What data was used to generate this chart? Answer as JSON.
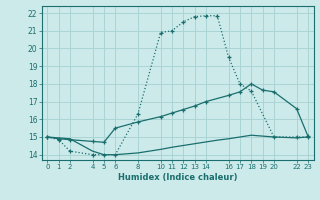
{
  "xlabel": "Humidex (Indice chaleur)",
  "bg_color": "#cceaea",
  "grid_color": "#aad4d4",
  "line_color": "#1a6e6e",
  "line1_x": [
    0,
    1,
    2,
    4,
    5,
    6,
    8,
    10,
    11,
    12,
    13,
    14,
    15,
    16,
    17,
    18,
    20,
    22,
    23
  ],
  "line1_y": [
    15.0,
    14.85,
    14.2,
    14.0,
    14.0,
    14.0,
    16.3,
    20.9,
    21.0,
    21.5,
    21.8,
    21.85,
    21.85,
    19.5,
    18.0,
    17.6,
    15.0,
    15.0,
    15.0
  ],
  "line2_x": [
    0,
    1,
    2,
    4,
    5,
    6,
    8,
    10,
    11,
    12,
    13,
    14,
    16,
    17,
    18,
    19,
    20,
    22,
    23
  ],
  "line2_y": [
    15.0,
    14.9,
    14.85,
    14.75,
    14.7,
    15.5,
    15.85,
    16.15,
    16.35,
    16.55,
    16.75,
    17.0,
    17.35,
    17.55,
    18.0,
    17.65,
    17.55,
    16.6,
    15.05
  ],
  "line3_x": [
    0,
    2,
    4,
    5,
    6,
    8,
    10,
    11,
    12,
    13,
    14,
    15,
    16,
    17,
    18,
    19,
    20,
    22,
    23
  ],
  "line3_y": [
    15.0,
    14.9,
    14.2,
    14.0,
    14.0,
    14.1,
    14.3,
    14.42,
    14.52,
    14.62,
    14.72,
    14.82,
    14.9,
    15.0,
    15.1,
    15.05,
    15.0,
    14.95,
    15.0
  ],
  "xlim": [
    -0.5,
    23.5
  ],
  "ylim": [
    13.7,
    22.4
  ],
  "xticks": [
    0,
    1,
    2,
    4,
    5,
    6,
    8,
    10,
    11,
    12,
    13,
    14,
    16,
    17,
    18,
    19,
    20,
    22,
    23
  ],
  "yticks": [
    14,
    15,
    16,
    17,
    18,
    19,
    20,
    21,
    22
  ]
}
